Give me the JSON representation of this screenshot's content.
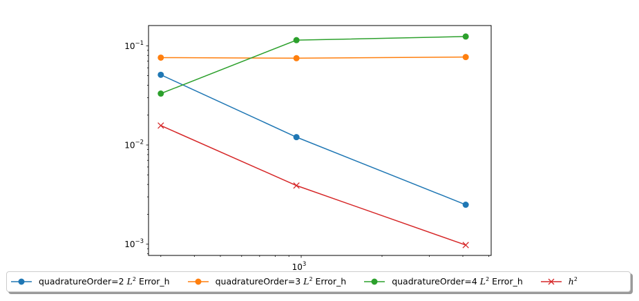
{
  "chart_data": {
    "type": "line",
    "x_scale": "log",
    "y_scale": "log",
    "xlim": [
      270,
      5100
    ],
    "ylim": [
      0.00077,
      0.16
    ],
    "x": [
      300,
      960,
      4100
    ],
    "grid": false,
    "legend_placement": "bottom",
    "legend_columns": 4,
    "series": [
      {
        "name_prefix": "quadratureOrder=2 ",
        "name_math": "L",
        "name_sup": "2",
        "name_suffix": " Error_h",
        "color": "#1f77b4",
        "marker": "circle",
        "values": [
          0.051,
          0.012,
          0.0025
        ]
      },
      {
        "name_prefix": "quadratureOrder=3 ",
        "name_math": "L",
        "name_sup": "2",
        "name_suffix": " Error_h",
        "color": "#ff7f0e",
        "marker": "circle",
        "values": [
          0.076,
          0.075,
          0.077
        ]
      },
      {
        "name_prefix": "quadratureOrder=4 ",
        "name_math": "L",
        "name_sup": "2",
        "name_suffix": " Error_h",
        "color": "#2ca02c",
        "marker": "circle",
        "values": [
          0.033,
          0.114,
          0.124
        ]
      },
      {
        "name_prefix": "",
        "name_math": "h",
        "name_sup": "2",
        "name_suffix": "",
        "color": "#d62728",
        "marker": "x",
        "values": [
          0.0157,
          0.0039,
          0.00098
        ]
      }
    ],
    "y_ticks": [
      {
        "value": 0.1,
        "base": "10",
        "exp": "−1"
      },
      {
        "value": 0.01,
        "base": "10",
        "exp": "−2"
      },
      {
        "value": 0.001,
        "base": "10",
        "exp": "−3"
      }
    ],
    "x_ticks": [
      {
        "value": 1000,
        "base": "10",
        "exp": "3"
      }
    ]
  }
}
